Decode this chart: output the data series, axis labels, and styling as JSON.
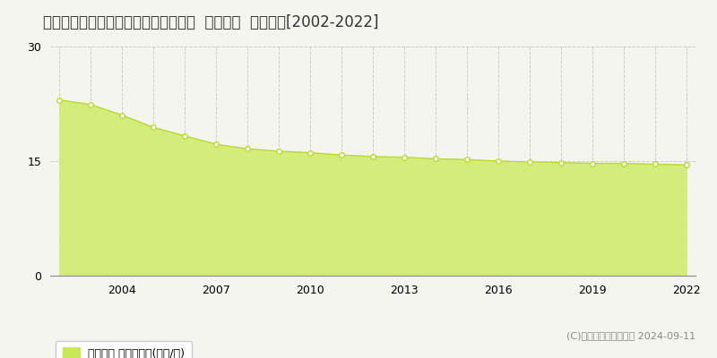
{
  "title": "栃木県鹿沼市西茂呂３丁目４１番３外  地価公示  地価推移[2002-2022]",
  "years": [
    2002,
    2003,
    2004,
    2005,
    2006,
    2007,
    2008,
    2009,
    2010,
    2011,
    2012,
    2013,
    2014,
    2015,
    2016,
    2017,
    2018,
    2019,
    2020,
    2021,
    2022
  ],
  "values": [
    23.0,
    22.4,
    21.0,
    19.4,
    18.3,
    17.2,
    16.6,
    16.3,
    16.1,
    15.8,
    15.6,
    15.5,
    15.3,
    15.2,
    15.0,
    14.9,
    14.8,
    14.7,
    14.7,
    14.6,
    14.5
  ],
  "fill_color": "#d4ed7a",
  "line_color": "#b8d832",
  "marker_face_color": "#ffffff",
  "marker_edge_color": "#b8d832",
  "bg_color": "#f5f5f0",
  "plot_bg_color": "#f5f5f0",
  "grid_color": "#cccccc",
  "ylim": [
    0,
    30
  ],
  "yticks": [
    0,
    15,
    30
  ],
  "xtick_labels": [
    2004,
    2007,
    2010,
    2013,
    2016,
    2019,
    2022
  ],
  "legend_label": "地価公示 平均坪単価(万円/坪)",
  "legend_color": "#c8e85a",
  "copyright_text": "(C)土地価格ドットコム 2024-09-11",
  "title_fontsize": 12,
  "tick_fontsize": 9,
  "legend_fontsize": 9,
  "copyright_fontsize": 8
}
